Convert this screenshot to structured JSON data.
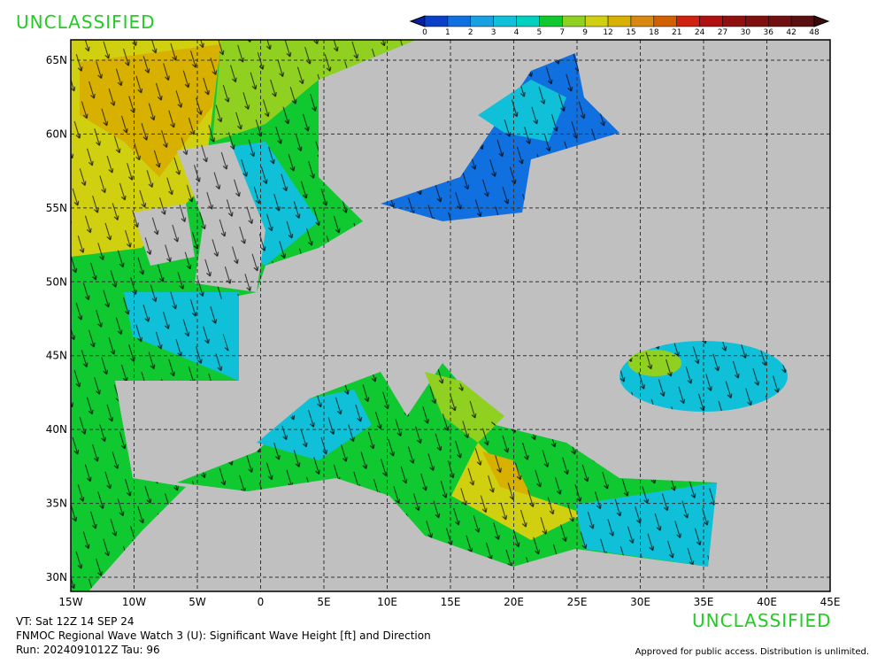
{
  "header": {
    "classification": "UNCLASSIFIED"
  },
  "colorbar": {
    "labels": [
      0,
      1,
      2,
      3,
      4,
      5,
      7,
      9,
      12,
      15,
      18,
      21,
      24,
      27,
      30,
      36,
      42,
      48
    ],
    "colors": [
      "#0a1f9e",
      "#0a3fc8",
      "#1070e0",
      "#18a0e0",
      "#10c0d8",
      "#00d0c0",
      "#10c830",
      "#90d020",
      "#d0d010",
      "#d8b000",
      "#d88810",
      "#d06000",
      "#d02010",
      "#b01010",
      "#901010",
      "#801010",
      "#701010",
      "#5a1010",
      "#3a0a0a"
    ]
  },
  "map": {
    "lon_labels": [
      "15W",
      "10W",
      "5W",
      "0",
      "5E",
      "10E",
      "15E",
      "20E",
      "25E",
      "30E",
      "35E",
      "40E",
      "45E"
    ],
    "lat_labels": [
      "65N",
      "60N",
      "55N",
      "50N",
      "45N",
      "40N",
      "35N",
      "30N"
    ]
  },
  "footer": {
    "classification": "UNCLASSIFIED",
    "valid_time": "VT: Sat 12Z 14 SEP 24",
    "product": "FNMOC Regional Wave Watch 3 (U): Significant Wave Height [ft] and Direction",
    "run": "Run: 2024091012Z Tau: 96",
    "release": "Approved for public access. Distribution is unlimited."
  }
}
